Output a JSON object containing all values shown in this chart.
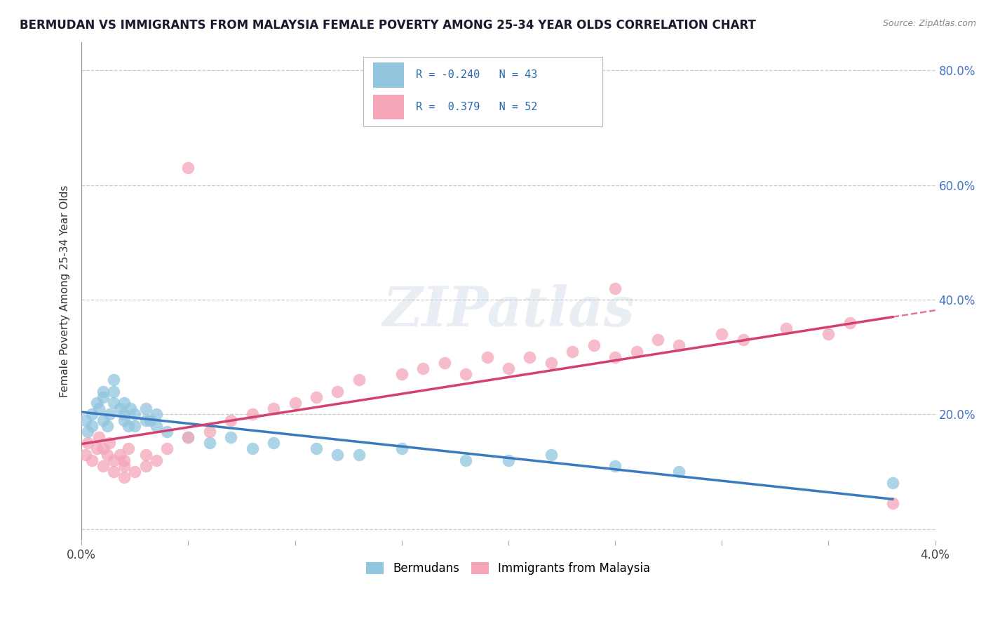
{
  "title": "BERMUDAN VS IMMIGRANTS FROM MALAYSIA FEMALE POVERTY AMONG 25-34 YEAR OLDS CORRELATION CHART",
  "source": "Source: ZipAtlas.com",
  "ylabel": "Female Poverty Among 25-34 Year Olds",
  "xlim": [
    0.0,
    0.04
  ],
  "ylim": [
    -0.02,
    0.85
  ],
  "xtick_positions": [
    0.0,
    0.005,
    0.01,
    0.015,
    0.02,
    0.025,
    0.03,
    0.035,
    0.04
  ],
  "xtick_labels": [
    "0.0%",
    "",
    "",
    "",
    "",
    "",
    "",
    "",
    "4.0%"
  ],
  "ytick_positions": [
    0.0,
    0.2,
    0.4,
    0.6,
    0.8
  ],
  "ytick_labels": [
    "",
    "20.0%",
    "40.0%",
    "60.0%",
    "80.0%"
  ],
  "blue_R": -0.24,
  "blue_N": 43,
  "pink_R": 0.379,
  "pink_N": 52,
  "blue_color": "#92c5de",
  "pink_color": "#f4a6b8",
  "blue_line_color": "#3a7abf",
  "pink_line_color": "#d44070",
  "watermark": "ZIPatlas",
  "legend_label_blue": "Bermudans",
  "legend_label_pink": "Immigrants from Malaysia",
  "blue_points_x": [
    0.0002,
    0.0003,
    0.0005,
    0.0005,
    0.0007,
    0.0008,
    0.001,
    0.001,
    0.001,
    0.0012,
    0.0013,
    0.0015,
    0.0015,
    0.0015,
    0.0018,
    0.002,
    0.002,
    0.002,
    0.0022,
    0.0023,
    0.0025,
    0.0025,
    0.003,
    0.003,
    0.0032,
    0.0035,
    0.0035,
    0.004,
    0.005,
    0.006,
    0.007,
    0.008,
    0.009,
    0.011,
    0.012,
    0.013,
    0.015,
    0.018,
    0.02,
    0.022,
    0.025,
    0.028,
    0.038
  ],
  "blue_points_y": [
    0.19,
    0.17,
    0.18,
    0.2,
    0.22,
    0.21,
    0.24,
    0.19,
    0.23,
    0.18,
    0.2,
    0.26,
    0.24,
    0.22,
    0.21,
    0.19,
    0.22,
    0.2,
    0.18,
    0.21,
    0.2,
    0.18,
    0.19,
    0.21,
    0.19,
    0.2,
    0.18,
    0.17,
    0.16,
    0.15,
    0.16,
    0.14,
    0.15,
    0.14,
    0.13,
    0.13,
    0.14,
    0.12,
    0.12,
    0.13,
    0.11,
    0.1,
    0.08
  ],
  "pink_points_x": [
    0.0002,
    0.0003,
    0.0005,
    0.0007,
    0.0008,
    0.001,
    0.001,
    0.0012,
    0.0013,
    0.0015,
    0.0015,
    0.0018,
    0.002,
    0.002,
    0.002,
    0.0022,
    0.0025,
    0.003,
    0.003,
    0.0035,
    0.004,
    0.005,
    0.006,
    0.007,
    0.008,
    0.009,
    0.01,
    0.011,
    0.012,
    0.013,
    0.015,
    0.016,
    0.017,
    0.018,
    0.019,
    0.02,
    0.021,
    0.022,
    0.023,
    0.024,
    0.025,
    0.026,
    0.027,
    0.028,
    0.03,
    0.031,
    0.033,
    0.035,
    0.036,
    0.005,
    0.025,
    0.038
  ],
  "pink_points_y": [
    0.13,
    0.15,
    0.12,
    0.14,
    0.16,
    0.11,
    0.14,
    0.13,
    0.15,
    0.1,
    0.12,
    0.13,
    0.09,
    0.11,
    0.12,
    0.14,
    0.1,
    0.13,
    0.11,
    0.12,
    0.14,
    0.16,
    0.17,
    0.19,
    0.2,
    0.21,
    0.22,
    0.23,
    0.24,
    0.26,
    0.27,
    0.28,
    0.29,
    0.27,
    0.3,
    0.28,
    0.3,
    0.29,
    0.31,
    0.32,
    0.3,
    0.31,
    0.33,
    0.32,
    0.34,
    0.33,
    0.35,
    0.34,
    0.36,
    0.63,
    0.42,
    0.045
  ]
}
